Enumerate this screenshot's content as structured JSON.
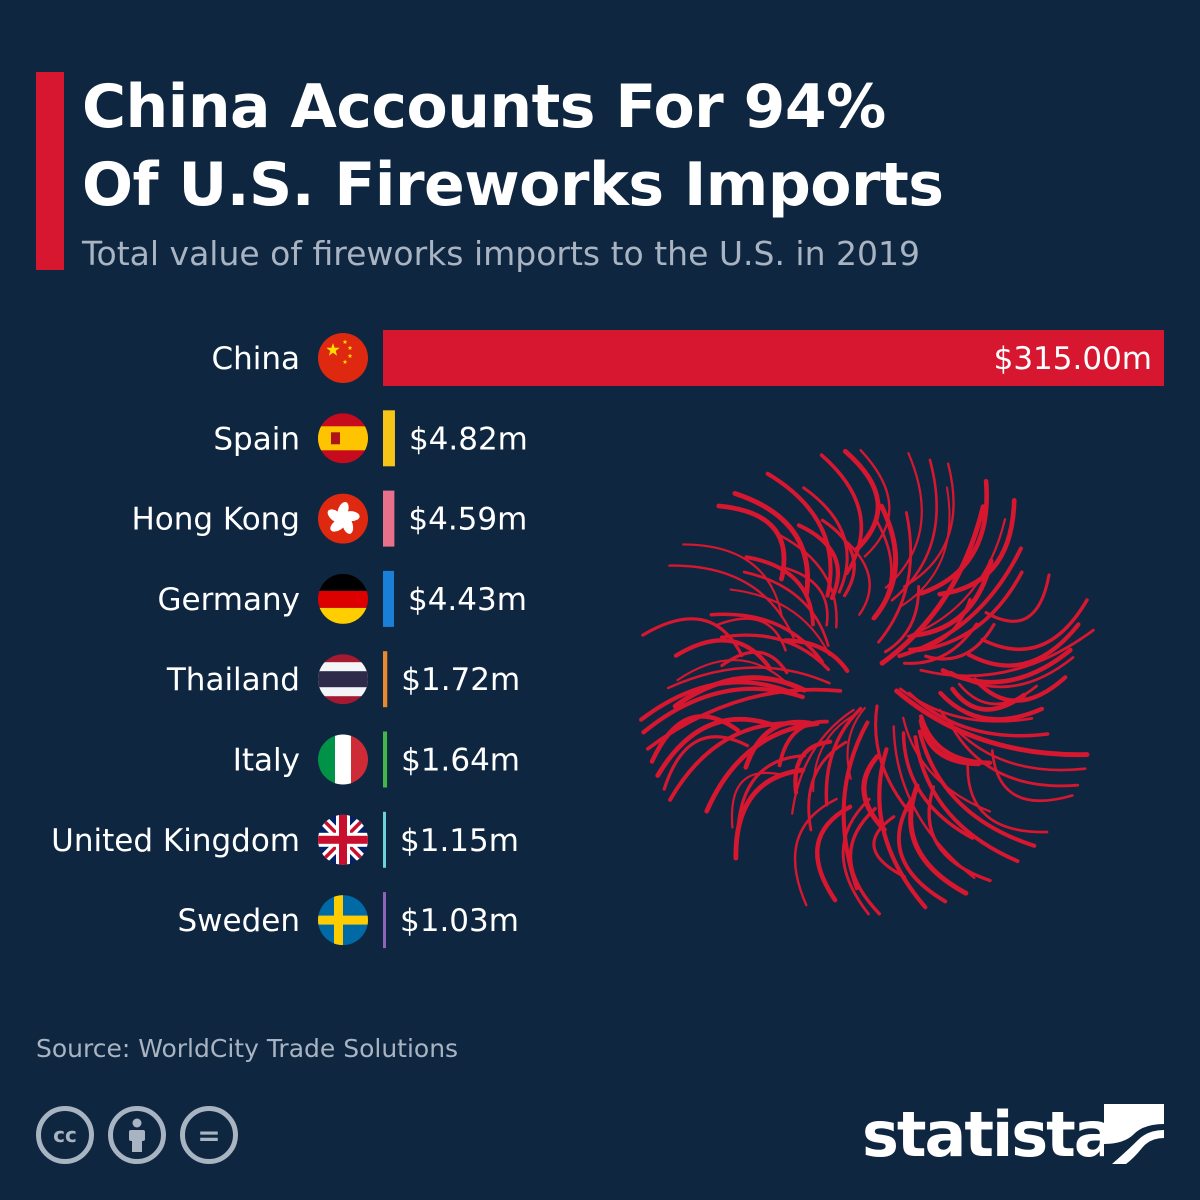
{
  "header": {
    "title_line1": "China Accounts For 94%",
    "title_line2": "Of U.S. Fireworks Imports",
    "subtitle": "Total value of fireworks imports to the U.S. in 2019"
  },
  "chart_data": {
    "type": "bar",
    "orientation": "horizontal",
    "categories": [
      "China",
      "Spain",
      "Hong Kong",
      "Germany",
      "Thailand",
      "Italy",
      "United Kingdom",
      "Sweden"
    ],
    "values": [
      315.0,
      4.82,
      4.59,
      4.43,
      1.72,
      1.64,
      1.15,
      1.03
    ],
    "labels": [
      "$315.00m",
      "$4.82m",
      "$4.59m",
      "$4.43m",
      "$1.72m",
      "$1.64m",
      "$1.15m",
      "$1.03m"
    ],
    "colors": [
      "#d7172f",
      "#f5c518",
      "#e8708a",
      "#1a7fd6",
      "#e8892c",
      "#43b649",
      "#6ed1d8",
      "#8e63b8"
    ],
    "flags": [
      "china-flag-icon",
      "spain-flag-icon",
      "hong-kong-flag-icon",
      "germany-flag-icon",
      "thailand-flag-icon",
      "italy-flag-icon",
      "united-kingdom-flag-icon",
      "sweden-flag-icon"
    ],
    "xlim": [
      0,
      315
    ]
  },
  "footer": {
    "source": "Source: WorldCity Trade Solutions",
    "license_icons": [
      "cc-icon",
      "attribution-icon",
      "no-derivatives-icon"
    ],
    "license_cc": "cc",
    "license_nd": "=",
    "brand": "statista"
  },
  "colors": {
    "background": "#0f2640",
    "accent": "#d7172f",
    "muted_text": "#a9b4c2",
    "firework": "#d7172f"
  }
}
